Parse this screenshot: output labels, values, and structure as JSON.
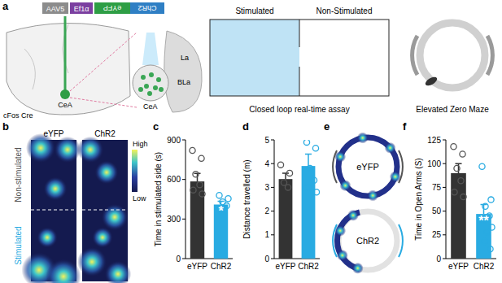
{
  "chart_data": [
    {
      "type": "bar",
      "panel": "c",
      "ylabel": "Time in stimulated side (s)",
      "categories": [
        "eYFP",
        "ChR2"
      ],
      "values": [
        585,
        410
      ],
      "errors": [
        60,
        25
      ],
      "colors": [
        "#333333",
        "#29abe2"
      ],
      "ylim": [
        0,
        900
      ],
      "yticks": [
        0,
        300,
        600,
        900
      ],
      "points": [
        [
          820,
          760,
          640,
          560,
          520,
          490
        ],
        [
          480,
          455,
          430,
          400,
          380
        ]
      ],
      "annotations": [
        {
          "index": 1,
          "text": "*"
        }
      ]
    },
    {
      "type": "bar",
      "panel": "d",
      "ylabel": "Distance travelled (m)",
      "categories": [
        "eYFP",
        "ChR2"
      ],
      "values": [
        3.35,
        3.9
      ],
      "errors": [
        0.25,
        0.5
      ],
      "colors": [
        "#333333",
        "#29abe2"
      ],
      "ylim": [
        0,
        5
      ],
      "yticks": [
        0,
        1,
        2,
        3,
        4,
        5
      ],
      "points": [
        [
          3.95,
          3.6,
          3.2,
          3.0
        ],
        [
          4.9,
          4.65,
          3.8,
          3.3,
          3.0,
          2.8
        ]
      ]
    },
    {
      "type": "bar",
      "panel": "f",
      "ylabel": "Time in Open Arms (S)",
      "categories": [
        "eYFP",
        "ChR2"
      ],
      "values": [
        90,
        47
      ],
      "errors": [
        10,
        10
      ],
      "colors": [
        "#333333",
        "#29abe2"
      ],
      "ylim": [
        0,
        125
      ],
      "yticks": [
        0,
        25,
        50,
        75,
        100,
        125
      ],
      "points": [
        [
          118,
          110,
          95,
          82,
          70,
          65
        ],
        [
          97,
          62,
          55,
          45,
          40,
          33,
          28,
          18,
          10
        ]
      ],
      "annotations": [
        {
          "index": 1,
          "text": "**"
        }
      ]
    }
  ],
  "schematic": {
    "panel": "a",
    "virus": "AAV5",
    "promoter": "Ef1α",
    "opsin": "ChR2",
    "reporter": "eYFP",
    "mouse": "cFos Cre",
    "region": "CeA",
    "inset_labels": [
      "CeA",
      "La",
      "BLa"
    ]
  },
  "assay": {
    "left": "Stimulated",
    "right": "Non-Stimulated",
    "caption": "Closed loop real-time assay"
  },
  "maze": {
    "caption": "Elevated Zero Maze"
  },
  "heatmaps": {
    "panel": "b",
    "groups": [
      "eYFP",
      "ChR2"
    ],
    "zones": [
      "Non-stimulated",
      "Stimulated"
    ],
    "colorbar": [
      "High",
      "Low"
    ]
  },
  "zero_maze_maps": {
    "panel": "e",
    "groups": [
      "eYFP",
      "ChR2"
    ]
  }
}
